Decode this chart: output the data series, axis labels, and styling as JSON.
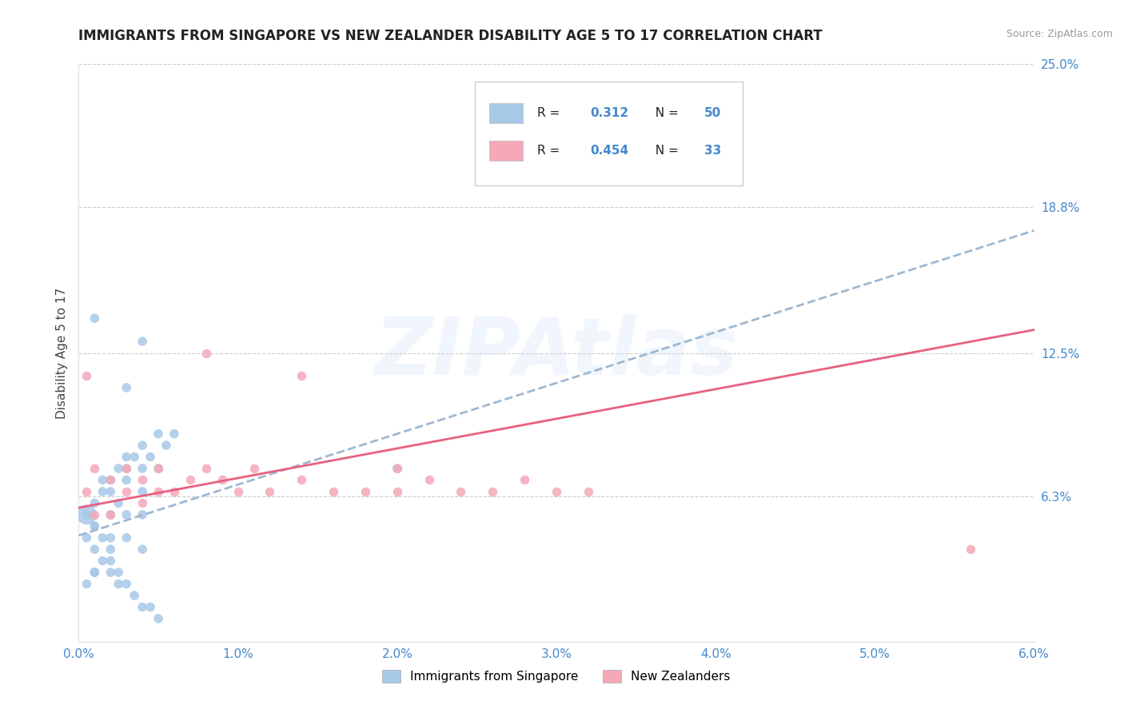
{
  "title": "IMMIGRANTS FROM SINGAPORE VS NEW ZEALANDER DISABILITY AGE 5 TO 17 CORRELATION CHART",
  "source": "Source: ZipAtlas.com",
  "ylabel": "Disability Age 5 to 17",
  "xlim": [
    0.0,
    0.06
  ],
  "ylim": [
    0.0,
    0.25
  ],
  "xticks": [
    0.0,
    0.01,
    0.02,
    0.03,
    0.04,
    0.05,
    0.06
  ],
  "xtick_labels": [
    "0.0%",
    "1.0%",
    "2.0%",
    "3.0%",
    "4.0%",
    "5.0%",
    "6.0%"
  ],
  "ytick_labels": [
    "6.3%",
    "12.5%",
    "18.8%",
    "25.0%"
  ],
  "yticks": [
    0.063,
    0.125,
    0.188,
    0.25
  ],
  "blue_R": "0.312",
  "blue_N": "50",
  "pink_R": "0.454",
  "pink_N": "33",
  "blue_dot_color": "#a8c8e8",
  "pink_dot_color": "#f4a8b8",
  "blue_line_color": "#a0b8d0",
  "pink_line_color": "#e86080",
  "blue_solid_line_color": "#4488cc",
  "grid_color": "#cccccc",
  "axis_tick_color": "#4488cc",
  "watermark": "ZIPAtlas",
  "watermark_color_r": 0.78,
  "watermark_color_g": 0.87,
  "watermark_color_b": 0.95,
  "legend_label_blue": "Immigrants from Singapore",
  "legend_label_pink": "New Zealanders",
  "blue_x": [
    0.0005,
    0.001,
    0.001,
    0.001,
    0.001,
    0.0015,
    0.0015,
    0.002,
    0.002,
    0.002,
    0.002,
    0.002,
    0.0025,
    0.0025,
    0.003,
    0.003,
    0.003,
    0.003,
    0.003,
    0.0035,
    0.004,
    0.004,
    0.004,
    0.004,
    0.004,
    0.0045,
    0.005,
    0.005,
    0.0055,
    0.006,
    0.0005,
    0.001,
    0.0015,
    0.002,
    0.0025,
    0.003,
    0.0035,
    0.004,
    0.0045,
    0.005,
    0.0005,
    0.001,
    0.0015,
    0.002,
    0.0025,
    0.0005,
    0.001,
    0.003,
    0.004,
    0.02
  ],
  "blue_y": [
    0.055,
    0.06,
    0.05,
    0.04,
    0.03,
    0.065,
    0.07,
    0.07,
    0.065,
    0.055,
    0.045,
    0.035,
    0.075,
    0.06,
    0.08,
    0.075,
    0.07,
    0.055,
    0.045,
    0.08,
    0.085,
    0.075,
    0.065,
    0.055,
    0.04,
    0.08,
    0.09,
    0.075,
    0.085,
    0.09,
    0.025,
    0.03,
    0.035,
    0.03,
    0.025,
    0.025,
    0.02,
    0.015,
    0.015,
    0.01,
    0.045,
    0.05,
    0.045,
    0.04,
    0.03,
    0.055,
    0.14,
    0.11,
    0.13,
    0.075
  ],
  "blue_sizes": [
    300,
    60,
    60,
    60,
    60,
    60,
    60,
    60,
    60,
    60,
    60,
    60,
    60,
    60,
    60,
    60,
    60,
    60,
    60,
    60,
    60,
    60,
    60,
    60,
    60,
    60,
    60,
    60,
    60,
    60,
    60,
    60,
    60,
    60,
    60,
    60,
    60,
    60,
    60,
    60,
    60,
    60,
    60,
    60,
    60,
    60,
    60,
    60,
    60,
    60
  ],
  "pink_x": [
    0.0005,
    0.001,
    0.001,
    0.002,
    0.002,
    0.003,
    0.003,
    0.004,
    0.004,
    0.005,
    0.005,
    0.006,
    0.007,
    0.008,
    0.009,
    0.01,
    0.011,
    0.012,
    0.014,
    0.016,
    0.018,
    0.02,
    0.022,
    0.024,
    0.026,
    0.028,
    0.03,
    0.032,
    0.014,
    0.008,
    0.0005,
    0.02,
    0.056
  ],
  "pink_y": [
    0.065,
    0.075,
    0.055,
    0.07,
    0.055,
    0.075,
    0.065,
    0.07,
    0.06,
    0.065,
    0.075,
    0.065,
    0.07,
    0.075,
    0.07,
    0.065,
    0.075,
    0.065,
    0.07,
    0.065,
    0.065,
    0.075,
    0.07,
    0.065,
    0.065,
    0.07,
    0.065,
    0.065,
    0.115,
    0.125,
    0.115,
    0.065,
    0.04
  ],
  "blue_line_y0": 0.046,
  "blue_line_y1": 0.178,
  "pink_line_y0": 0.058,
  "pink_line_y1": 0.135
}
